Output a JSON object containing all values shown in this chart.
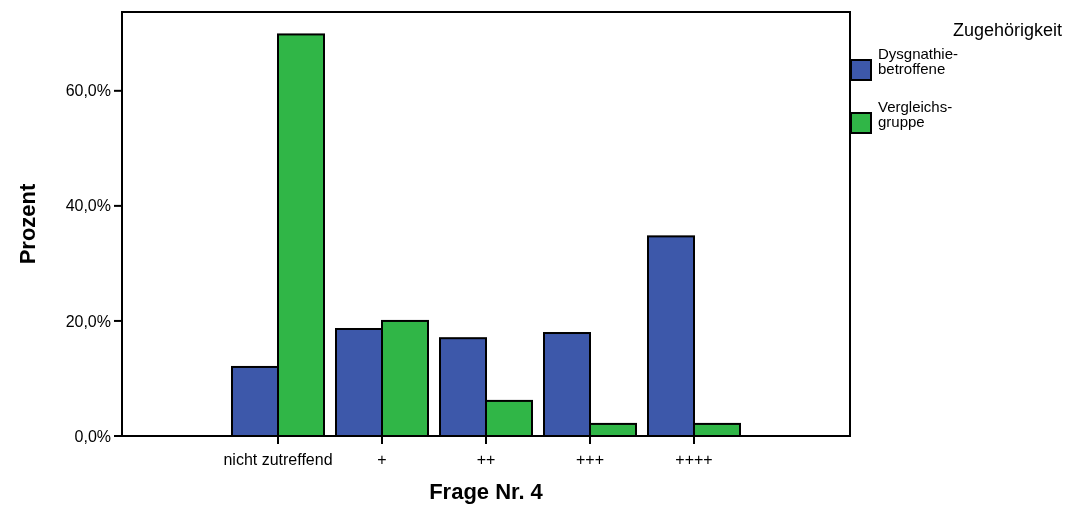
{
  "chart_data": {
    "type": "bar",
    "xlabel": "Frage Nr. 4",
    "ylabel": "Prozent",
    "legend_title": "Zugehörigkeit",
    "legend": "right",
    "categories": [
      "nicht zutreffend",
      "+",
      "++",
      "+++",
      "++++"
    ],
    "series": [
      {
        "name": "Dysgnathie-\nbetroffene",
        "color": "#3d58aa",
        "values": [
          12.0,
          18.6,
          17.0,
          17.9,
          34.7
        ]
      },
      {
        "name": "Vergleichs-\ngruppe",
        "color": "#30b647",
        "values": [
          69.8,
          20.0,
          6.1,
          2.1,
          2.1
        ]
      }
    ],
    "ylim": [
      0,
      73.7
    ],
    "yticks": [
      {
        "value": 0,
        "label": "0,0%"
      },
      {
        "value": 20,
        "label": "20,0%"
      },
      {
        "value": 40,
        "label": "40,0%"
      },
      {
        "value": 60,
        "label": "60,0%"
      }
    ],
    "grid": false
  }
}
